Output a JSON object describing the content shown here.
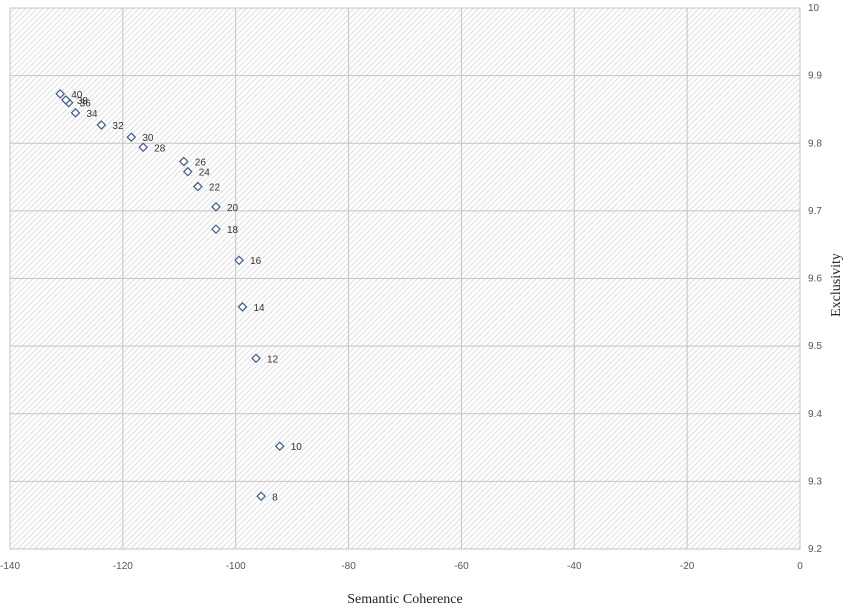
{
  "chart_data": {
    "type": "scatter",
    "title": "",
    "xlabel": "Semantic Coherence",
    "ylabel": "Exclusivity",
    "xlim": [
      -140,
      0
    ],
    "ylim": [
      9.2,
      10
    ],
    "x_ticks": [
      -140,
      -120,
      -100,
      -80,
      -60,
      -40,
      -20,
      0
    ],
    "y_ticks": [
      9.2,
      9.3,
      9.4,
      9.5,
      9.6,
      9.7,
      9.8,
      9.9,
      10
    ],
    "x_tick_labels": [
      "-140",
      "-120",
      "-100",
      "-80",
      "-60",
      "-40",
      "-20",
      "0"
    ],
    "y_tick_labels": [
      "9.2",
      "9.3",
      "9.4",
      "9.5",
      "9.6",
      "9.7",
      "9.8",
      "9.9",
      "10"
    ],
    "grid": true,
    "marker": "diamond-open",
    "marker_color": "#3d5a8a",
    "background_pattern": "diagonal-hatch",
    "points": [
      {
        "label": "8",
        "x": -95.5,
        "y": 9.278
      },
      {
        "label": "10",
        "x": -92.2,
        "y": 9.352
      },
      {
        "label": "12",
        "x": -96.4,
        "y": 9.482
      },
      {
        "label": "14",
        "x": -98.8,
        "y": 9.558
      },
      {
        "label": "16",
        "x": -99.4,
        "y": 9.627
      },
      {
        "label": "18",
        "x": -103.5,
        "y": 9.673
      },
      {
        "label": "20",
        "x": -103.5,
        "y": 9.706
      },
      {
        "label": "22",
        "x": -106.7,
        "y": 9.736
      },
      {
        "label": "24",
        "x": -108.5,
        "y": 9.758
      },
      {
        "label": "26",
        "x": -109.2,
        "y": 9.773
      },
      {
        "label": "28",
        "x": -116.4,
        "y": 9.794
      },
      {
        "label": "30",
        "x": -118.5,
        "y": 9.809
      },
      {
        "label": "32",
        "x": -123.8,
        "y": 9.827
      },
      {
        "label": "34",
        "x": -128.4,
        "y": 9.845
      },
      {
        "label": "36",
        "x": -129.6,
        "y": 9.86
      },
      {
        "label": "38",
        "x": -130.1,
        "y": 9.864
      },
      {
        "label": "40",
        "x": -131.1,
        "y": 9.873
      }
    ]
  }
}
